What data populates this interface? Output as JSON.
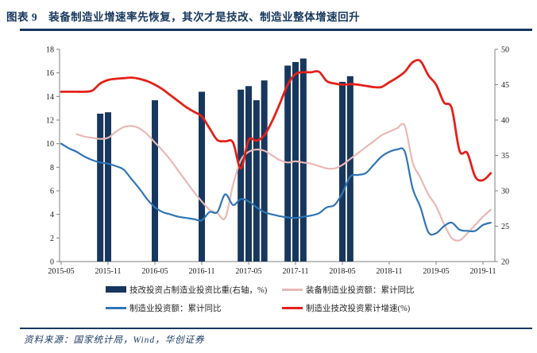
{
  "title": {
    "num": "图表 9",
    "text": "装备制造业增速率先恢复，其次才是技改、制造业整体增速回升"
  },
  "footer": {
    "text": "资料来源：国家统计局，Wind，华创证券"
  },
  "colors": {
    "navy": "#17375e",
    "red": "#e32119",
    "blue": "#2e75b6",
    "pink": "#e9b8b5",
    "axis_text": "#1a1a1a",
    "title_text": "#17375e"
  },
  "chart_data": {
    "type": "bar+line",
    "title": "装备制造业增速率先恢复，其次才是技改、制造业整体增速回升",
    "grid": false,
    "legend_position": "bottom",
    "left_axis": {
      "min": 0,
      "max": 18,
      "step": 2,
      "ticks": [
        "0",
        "2",
        "4",
        "6",
        "8",
        "10",
        "12",
        "14",
        "16",
        "18"
      ]
    },
    "right_axis": {
      "min": 20,
      "max": 50,
      "step": 5,
      "ticks": [
        "20",
        "25",
        "30",
        "35",
        "40",
        "45",
        "50"
      ]
    },
    "x_ticks": [
      "2015-05",
      "2015-11",
      "2016-05",
      "2016-11",
      "2017-05",
      "2017-11",
      "2018-05",
      "2018-11",
      "2019-05",
      "2019-11"
    ],
    "series": [
      {
        "name": "技改投资占制造业投资比重(右轴，%)",
        "type": "bar",
        "axis": "right",
        "color": "#17375e",
        "points": [
          [
            "2015-10",
            40.9
          ],
          [
            "2015-11",
            41.1
          ],
          [
            "2016-05",
            42.8
          ],
          [
            "2016-11",
            44.0
          ],
          [
            "2017-04",
            44.3
          ],
          [
            "2017-05",
            44.8
          ],
          [
            "2017-06",
            42.8
          ],
          [
            "2017-07",
            45.6
          ],
          [
            "2017-10",
            47.7
          ],
          [
            "2017-11",
            48.2
          ],
          [
            "2017-12",
            48.7
          ],
          [
            "2018-05",
            45.4
          ],
          [
            "2018-06",
            46.2
          ]
        ]
      },
      {
        "name": "装备制造业投资额：累计同比",
        "type": "line",
        "axis": "left",
        "color": "#e9b8b5",
        "width": 2.2,
        "start": "2015-07",
        "values": [
          10.8,
          10.6,
          10.5,
          10.4,
          10.5,
          11.0,
          11.4,
          11.5,
          11.3,
          10.8,
          10.1,
          9.4,
          8.6,
          7.7,
          6.8,
          5.9,
          5.1,
          4.4,
          4.1,
          3.7,
          6.5,
          8.6,
          9.3,
          9.5,
          9.4,
          9.0,
          8.6,
          8.4,
          8.5,
          8.4,
          8.3,
          8.1,
          7.9,
          7.9,
          8.2,
          8.7,
          9.2,
          9.7,
          10.2,
          10.7,
          11.0,
          11.3,
          11.5,
          8.4,
          7.1,
          5.7,
          4.7,
          3.2,
          2.0,
          1.8,
          2.4,
          3.1,
          3.8,
          4.4
        ]
      },
      {
        "name": "制造业投资额：累计同比",
        "type": "line",
        "axis": "left",
        "color": "#2e75b6",
        "width": 2.2,
        "start": "2015-05",
        "values": [
          10.0,
          9.6,
          9.3,
          8.9,
          8.6,
          8.4,
          8.3,
          8.1,
          7.8,
          7.0,
          6.2,
          5.3,
          4.6,
          4.2,
          4.0,
          3.8,
          3.7,
          3.6,
          3.5,
          4.2,
          4.2,
          5.7,
          4.8,
          5.3,
          5.1,
          4.6,
          4.2,
          4.0,
          3.85,
          3.75,
          3.7,
          3.8,
          3.9,
          4.1,
          4.6,
          4.8,
          5.8,
          7.2,
          7.35,
          7.5,
          8.2,
          8.9,
          9.3,
          9.5,
          9.3,
          6.2,
          4.6,
          2.5,
          2.4,
          3.0,
          3.3,
          2.7,
          2.6,
          2.6,
          3.1,
          3.3
        ]
      },
      {
        "name": "制造业技改投资累计增速(%)",
        "type": "line",
        "axis": "left",
        "color": "#e32119",
        "width": 2.8,
        "start": "2015-05",
        "values": [
          14.4,
          14.4,
          14.4,
          14.4,
          14.5,
          15.1,
          15.4,
          15.5,
          15.55,
          15.6,
          15.5,
          15.3,
          15.0,
          14.6,
          14.1,
          13.6,
          13.1,
          12.7,
          12.3,
          11.3,
          10.3,
          10.2,
          10.1,
          7.9,
          10.3,
          10.25,
          10.7,
          11.9,
          13.4,
          15.0,
          15.9,
          16.05,
          16.05,
          16.1,
          15.3,
          15.1,
          15.0,
          15.05,
          15.0,
          14.9,
          14.8,
          14.8,
          15.2,
          15.6,
          16.1,
          16.9,
          17.0,
          15.8,
          15.0,
          13.5,
          13.0,
          9.4,
          9.2,
          7.2,
          6.9,
          7.5
        ]
      }
    ]
  },
  "legend": {
    "order": [
      0,
      1,
      2,
      3
    ]
  }
}
